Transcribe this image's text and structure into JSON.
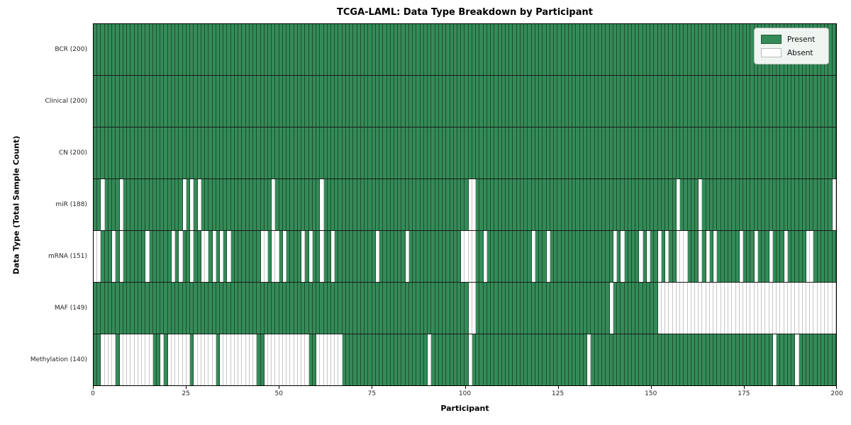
{
  "chart_data": {
    "type": "heatmap",
    "title": "TCGA-LAML: Data Type Breakdown by Participant",
    "xlabel": "Participant",
    "ylabel": "Data Type (Total Sample Count)",
    "n_participants": 200,
    "x_ticks": [
      0,
      25,
      50,
      75,
      100,
      125,
      150,
      175,
      200
    ],
    "legend": {
      "present_label": "Present",
      "absent_label": "Absent",
      "position": "upper right"
    },
    "colors": {
      "present": "#348b57",
      "absent": "#ffffff",
      "present_grid": "rgba(10,30,18,0.55)",
      "absent_grid": "#c6c6c6"
    },
    "rows": [
      {
        "label": "BCR (200)",
        "present_count": 200,
        "absent_participants": []
      },
      {
        "label": "Clinical (200)",
        "present_count": 200,
        "absent_participants": []
      },
      {
        "label": "CN (200)",
        "present_count": 200,
        "absent_participants": []
      },
      {
        "label": "miR (188)",
        "present_count": 188,
        "absent_participants": [
          2,
          7,
          24,
          26,
          28,
          48,
          61,
          101,
          102,
          157,
          163,
          199
        ]
      },
      {
        "label": "mRNA (151)",
        "present_count": 151,
        "absent_participants": [
          0,
          1,
          5,
          7,
          14,
          21,
          23,
          26,
          29,
          30,
          32,
          34,
          36,
          45,
          46,
          48,
          49,
          51,
          56,
          58,
          61,
          64,
          76,
          84,
          99,
          100,
          101,
          102,
          105,
          118,
          122,
          140,
          142,
          147,
          149,
          152,
          154,
          157,
          158,
          159,
          163,
          165,
          167,
          174,
          178,
          182,
          186,
          192,
          193
        ]
      },
      {
        "label": "MAF (149)",
        "present_count": 149,
        "absent_participants": [
          101,
          102,
          139,
          152,
          153,
          154,
          155,
          156,
          157,
          158,
          159,
          160,
          161,
          162,
          163,
          164,
          165,
          166,
          167,
          168,
          169,
          170,
          171,
          172,
          173,
          174,
          175,
          176,
          177,
          178,
          179,
          180,
          181,
          182,
          183,
          184,
          185,
          186,
          187,
          188,
          189,
          190,
          191,
          192,
          193,
          194,
          195,
          196,
          197,
          198,
          199
        ]
      },
      {
        "label": "Methylation (140)",
        "present_count": 140,
        "absent_participants": [
          2,
          3,
          4,
          5,
          7,
          8,
          9,
          10,
          11,
          12,
          13,
          14,
          15,
          18,
          20,
          21,
          22,
          23,
          24,
          25,
          27,
          28,
          29,
          30,
          31,
          32,
          34,
          35,
          36,
          37,
          38,
          39,
          40,
          41,
          42,
          43,
          46,
          47,
          48,
          49,
          50,
          51,
          52,
          53,
          54,
          55,
          56,
          57,
          60,
          61,
          62,
          63,
          64,
          65,
          66,
          90,
          101,
          133,
          183,
          189
        ]
      }
    ]
  }
}
